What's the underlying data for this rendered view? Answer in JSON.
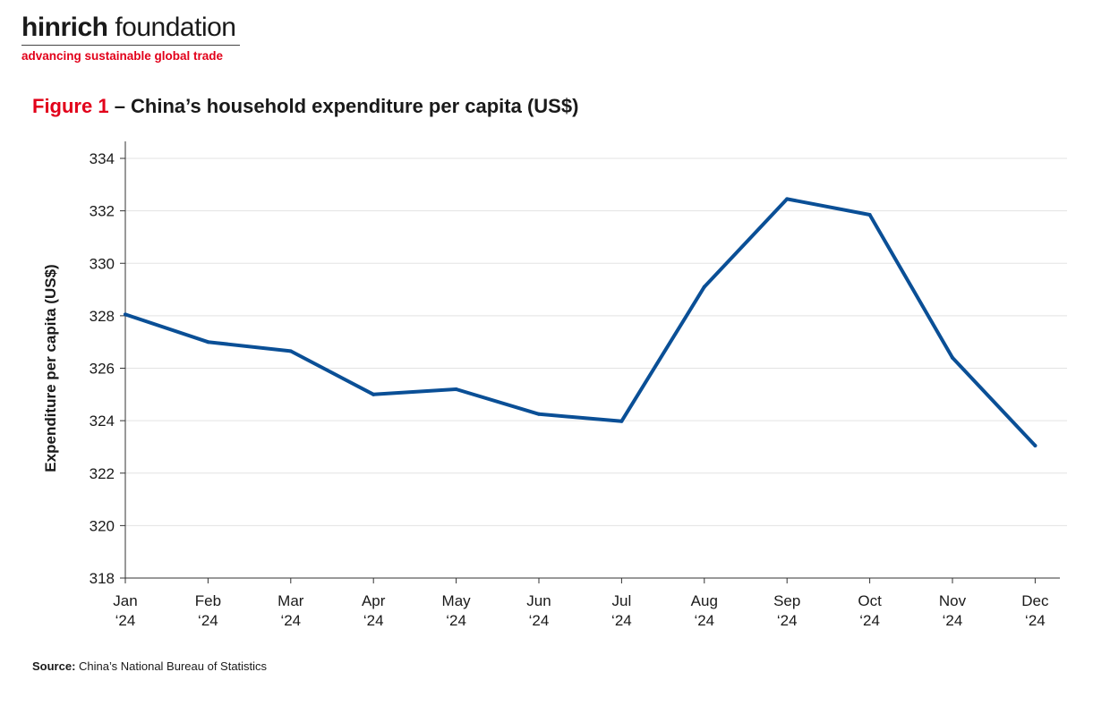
{
  "logo": {
    "name_bold": "hinrich",
    "name_rest": " foundation",
    "tagline": "advancing sustainable global trade"
  },
  "figure": {
    "number": "Figure 1",
    "title": " – China’s household expenditure per capita (US$)"
  },
  "source": {
    "label": "Source:",
    "text": " China’s National Bureau of Statistics"
  },
  "chart_data": {
    "type": "line",
    "categories": [
      "Jan\n‘24",
      "Feb\n‘24",
      "Mar\n‘24",
      "Apr\n‘24",
      "May\n‘24",
      "Jun\n‘24",
      "Jul\n‘24",
      "Aug\n‘24",
      "Sep\n‘24",
      "Oct\n‘24",
      "Nov\n‘24",
      "Dec\n‘24"
    ],
    "series": [
      {
        "values": [
          328.05,
          327.0,
          326.65,
          325.0,
          325.2,
          324.25,
          323.98,
          329.1,
          332.45,
          331.85,
          326.4,
          323.05
        ]
      }
    ],
    "ylabel": "Expenditure per capita (US$)",
    "ylim": [
      318,
      334
    ],
    "yticks": [
      318,
      320,
      322,
      324,
      326,
      328,
      330,
      332,
      334
    ],
    "grid": true,
    "legend": "none",
    "line_color": "#0a4f96"
  }
}
